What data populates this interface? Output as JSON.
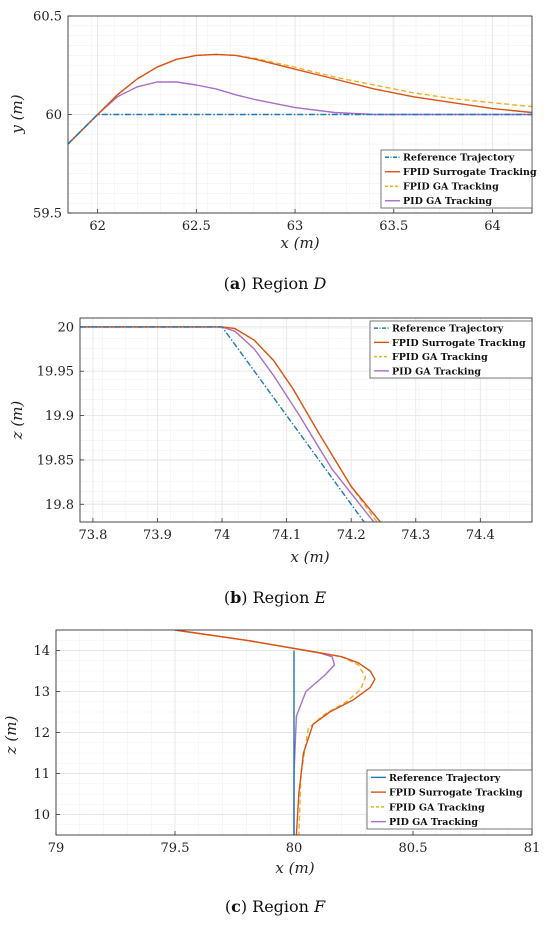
{
  "colors": {
    "reference": "#1f77b4",
    "fpid_surrogate": "#d95319",
    "fpid_ga": "#edb120",
    "pid_ga": "#a86fc8",
    "grid": "#e6e6e6",
    "axis": "#333333"
  },
  "chart_data": [
    {
      "type": "line",
      "xlabel": "x (m)",
      "ylabel": "y (m)",
      "xlim": [
        61.85,
        64.2
      ],
      "ylim": [
        59.5,
        60.5
      ],
      "xticks": [
        62,
        62.5,
        63,
        63.5,
        64
      ],
      "yticks": [
        59.5,
        60,
        60.5
      ],
      "xtick_labels": [
        "62",
        "62.5",
        "63",
        "63.5",
        "64"
      ],
      "ytick_labels": [
        "59.5",
        "60",
        "60.5"
      ],
      "grid": true,
      "legend_position": "bottom-right",
      "caption": {
        "label": "a",
        "text": "Region",
        "var": "D"
      },
      "series": [
        {
          "name": "Reference Trajectory",
          "color_key": "reference",
          "style": "dashdot",
          "x": [
            61.85,
            62.0,
            64.2
          ],
          "y": [
            59.85,
            60.0,
            60.0
          ]
        },
        {
          "name": "FPID Surrogate Tracking",
          "color_key": "fpid_surrogate",
          "style": "solid",
          "x": [
            61.85,
            62.0,
            62.1,
            62.2,
            62.3,
            62.4,
            62.5,
            62.6,
            62.7,
            62.8,
            63.0,
            63.2,
            63.4,
            63.6,
            63.8,
            64.0,
            64.2
          ],
          "y": [
            59.85,
            60.0,
            60.1,
            60.18,
            60.24,
            60.28,
            60.3,
            60.305,
            60.3,
            60.28,
            60.23,
            60.18,
            60.13,
            60.09,
            60.06,
            60.03,
            60.01
          ]
        },
        {
          "name": "FPID GA Tracking",
          "color_key": "fpid_ga",
          "style": "dashed",
          "x": [
            61.85,
            62.0,
            62.1,
            62.2,
            62.3,
            62.4,
            62.5,
            62.6,
            62.7,
            62.8,
            63.0,
            63.2,
            63.4,
            63.6,
            63.8,
            64.0,
            64.2
          ],
          "y": [
            59.85,
            60.0,
            60.1,
            60.18,
            60.24,
            60.28,
            60.3,
            60.305,
            60.3,
            60.285,
            60.24,
            60.19,
            60.15,
            60.11,
            60.08,
            60.06,
            60.04
          ]
        },
        {
          "name": "PID GA Tracking",
          "color_key": "pid_ga",
          "style": "solid",
          "x": [
            61.85,
            62.0,
            62.1,
            62.2,
            62.3,
            62.4,
            62.5,
            62.6,
            62.7,
            62.8,
            63.0,
            63.2,
            63.4,
            63.6,
            64.0,
            64.2
          ],
          "y": [
            59.85,
            60.0,
            60.09,
            60.14,
            60.165,
            60.165,
            60.15,
            60.13,
            60.1,
            60.075,
            60.035,
            60.01,
            60.0,
            60.0,
            60.0,
            60.0
          ]
        }
      ]
    },
    {
      "type": "line",
      "xlabel": "x (m)",
      "ylabel": "z (m)",
      "xlim": [
        73.78,
        74.48
      ],
      "ylim": [
        19.78,
        20.01
      ],
      "xticks": [
        73.8,
        73.9,
        74,
        74.1,
        74.2,
        74.3,
        74.4
      ],
      "yticks": [
        19.8,
        19.85,
        19.9,
        19.95,
        20
      ],
      "xtick_labels": [
        "73.8",
        "73.9",
        "74",
        "74.1",
        "74.2",
        "74.3",
        "74.4"
      ],
      "ytick_labels": [
        "19.8",
        "19.85",
        "19.9",
        "19.95",
        "20"
      ],
      "grid": true,
      "legend_position": "top-right",
      "caption": {
        "label": "b",
        "text": "Region",
        "var": "E"
      },
      "series": [
        {
          "name": "Reference Trajectory",
          "color_key": "reference",
          "style": "dashdot",
          "x": [
            73.78,
            74.0,
            74.22
          ],
          "y": [
            20.0,
            20.0,
            19.78
          ]
        },
        {
          "name": "FPID Surrogate Tracking",
          "color_key": "fpid_surrogate",
          "style": "solid",
          "x": [
            73.78,
            74.0,
            74.02,
            74.05,
            74.08,
            74.11,
            74.15,
            74.2,
            74.245
          ],
          "y": [
            20.0,
            20.0,
            19.998,
            19.985,
            19.962,
            19.93,
            19.88,
            19.82,
            19.78
          ]
        },
        {
          "name": "FPID GA Tracking",
          "color_key": "fpid_ga",
          "style": "dashed",
          "x": [
            73.78,
            74.0,
            74.02,
            74.05,
            74.08,
            74.11,
            74.15,
            74.2,
            74.24
          ],
          "y": [
            20.0,
            20.0,
            19.998,
            19.985,
            19.962,
            19.93,
            19.88,
            19.82,
            19.78
          ]
        },
        {
          "name": "PID GA Tracking",
          "color_key": "pid_ga",
          "style": "solid",
          "x": [
            73.78,
            74.0,
            74.02,
            74.05,
            74.08,
            74.12,
            74.17,
            74.235
          ],
          "y": [
            20.0,
            20.0,
            19.995,
            19.975,
            19.945,
            19.9,
            19.84,
            19.78
          ]
        }
      ]
    },
    {
      "type": "line",
      "xlabel": "x (m)",
      "ylabel": "z (m)",
      "xlim": [
        79,
        81
      ],
      "ylim": [
        9.5,
        14.5
      ],
      "xticks": [
        79,
        79.5,
        80,
        80.5,
        81
      ],
      "yticks": [
        10,
        11,
        12,
        13,
        14
      ],
      "xtick_labels": [
        "79",
        "79.5",
        "80",
        "80.5",
        "81"
      ],
      "ytick_labels": [
        "10",
        "11",
        "12",
        "13",
        "14"
      ],
      "grid": true,
      "legend_position": "bottom-right",
      "caption": {
        "label": "c",
        "text": "Region",
        "var": "F"
      },
      "series": [
        {
          "name": "Reference Trajectory",
          "color_key": "reference",
          "style": "solid",
          "x": [
            80.0,
            80.0
          ],
          "y": [
            14.0,
            9.5
          ]
        },
        {
          "name": "FPID Surrogate Tracking",
          "color_key": "fpid_surrogate",
          "style": "solid",
          "x": [
            79.5,
            79.8,
            80.0,
            80.1,
            80.2,
            80.27,
            80.32,
            80.34,
            80.32,
            80.25,
            80.15,
            80.08,
            80.04,
            80.02,
            80.01
          ],
          "y": [
            14.5,
            14.25,
            14.05,
            13.95,
            13.85,
            13.7,
            13.5,
            13.3,
            13.1,
            12.8,
            12.5,
            12.2,
            11.5,
            10.5,
            9.5
          ]
        },
        {
          "name": "FPID GA Tracking",
          "color_key": "fpid_ga",
          "style": "dashed",
          "x": [
            79.5,
            79.8,
            80.0,
            80.1,
            80.2,
            80.27,
            80.3,
            80.28,
            80.22,
            80.13,
            80.06,
            80.03,
            80.02
          ],
          "y": [
            14.5,
            14.25,
            14.05,
            13.95,
            13.85,
            13.65,
            13.35,
            13.05,
            12.75,
            12.45,
            12.1,
            11.0,
            9.5
          ]
        },
        {
          "name": "PID GA Tracking",
          "color_key": "pid_ga",
          "style": "solid",
          "x": [
            79.5,
            79.8,
            80.0,
            80.1,
            80.16,
            80.17,
            80.13,
            80.05,
            80.01,
            80.0,
            80.0
          ],
          "y": [
            14.5,
            14.25,
            14.05,
            13.95,
            13.85,
            13.65,
            13.4,
            13.0,
            12.4,
            11.0,
            9.5
          ]
        }
      ]
    }
  ]
}
